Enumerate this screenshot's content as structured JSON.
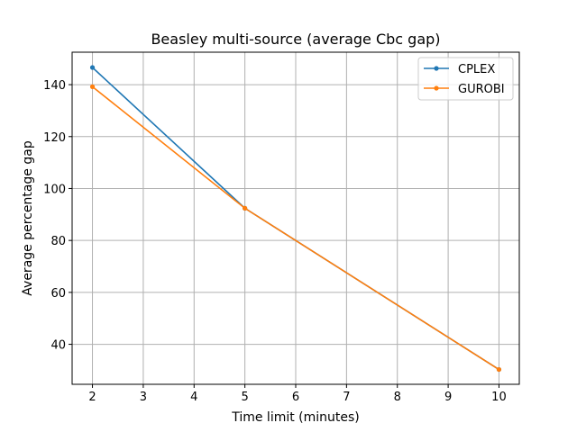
{
  "chart_data": {
    "type": "line",
    "title": "Beasley multi-source (average Cbc gap)",
    "xlabel": "Time limit (minutes)",
    "ylabel": "Average percentage gap",
    "xlim": [
      1.6,
      10.4
    ],
    "ylim": [
      24.6,
      152.5
    ],
    "xticks": [
      2,
      3,
      4,
      5,
      6,
      7,
      8,
      9,
      10
    ],
    "yticks": [
      40,
      60,
      80,
      100,
      120,
      140
    ],
    "grid": true,
    "legend_position": "top-right",
    "series": [
      {
        "name": "CPLEX",
        "color": "#1f77b4",
        "x": [
          2,
          5,
          10
        ],
        "y": [
          146.6,
          92.4,
          30.3
        ]
      },
      {
        "name": "GUROBI",
        "color": "#ff7f0e",
        "x": [
          2,
          5,
          10
        ],
        "y": [
          139.2,
          92.4,
          30.3
        ]
      }
    ]
  }
}
